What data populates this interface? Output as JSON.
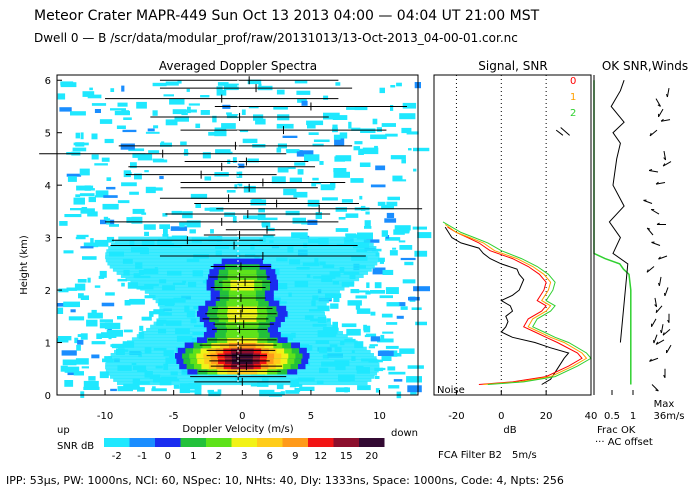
{
  "header": {
    "line1": "Meteor Crater   MAPR-449   Sun Oct 13 2013 04:00 — 04:04 UT 21:00 MST",
    "line2": "Dwell  0 —  B    /scr/data/modular_prof/raw/20131013/13-Oct-2013_04-00-01.cor.nc"
  },
  "footer": {
    "params": "IPP: 53μs,  PW: 1000ns,  NCI: 60,  NSpec: 10,  NHts: 40,  Dly: 1333ns,  Space: 1000ns,  Code: 4,  Npts: 256"
  },
  "chart_data": [
    {
      "id": "doppler",
      "type": "heatmap",
      "title": "Averaged Doppler Spectra",
      "xlabel": "Doppler Velocity (m/s)",
      "ylabel": "Height (km)",
      "x_left_note": "up",
      "x_right_note": "down",
      "xlim": [
        -13.5,
        12.8
      ],
      "ylim": [
        0,
        6.1
      ],
      "xticks": [
        -10,
        -5,
        0,
        5,
        10
      ],
      "yticks": [
        0,
        1,
        2,
        3,
        4,
        5,
        6
      ],
      "snr_profile": [
        {
          "h": 0.45,
          "half_width": 4.0,
          "level": 5
        },
        {
          "h": 0.55,
          "half_width": 4.6,
          "level": 8
        },
        {
          "h": 0.65,
          "half_width": 4.8,
          "level": 9
        },
        {
          "h": 0.75,
          "half_width": 4.9,
          "level": 9
        },
        {
          "h": 0.85,
          "half_width": 4.7,
          "level": 8
        },
        {
          "h": 0.95,
          "half_width": 4.2,
          "level": 6
        },
        {
          "h": 1.05,
          "half_width": 3.3,
          "level": 4
        },
        {
          "h": 1.15,
          "half_width": 2.8,
          "level": 3
        },
        {
          "h": 1.25,
          "half_width": 2.6,
          "level": 3
        },
        {
          "h": 1.35,
          "half_width": 2.8,
          "level": 3
        },
        {
          "h": 1.45,
          "half_width": 3.1,
          "level": 4
        },
        {
          "h": 1.55,
          "half_width": 3.3,
          "level": 4
        },
        {
          "h": 1.65,
          "half_width": 3.2,
          "level": 4
        },
        {
          "h": 1.75,
          "half_width": 2.7,
          "level": 3
        },
        {
          "h": 1.85,
          "half_width": 2.3,
          "level": 3
        },
        {
          "h": 1.95,
          "half_width": 2.3,
          "level": 3
        },
        {
          "h": 2.05,
          "half_width": 2.6,
          "level": 4
        },
        {
          "h": 2.15,
          "half_width": 2.6,
          "level": 4
        },
        {
          "h": 2.25,
          "half_width": 2.5,
          "level": 3
        },
        {
          "h": 2.35,
          "half_width": 2.4,
          "level": 3
        },
        {
          "h": 2.45,
          "half_width": 2.1,
          "level": 2
        },
        {
          "h": 2.55,
          "half_width": 1.5,
          "level": 1
        }
      ],
      "vertical_velocity_markers": [
        {
          "h": 0.25,
          "v": 0.0,
          "err": 3.5
        },
        {
          "h": 0.35,
          "v": -0.3,
          "err": 3.5
        },
        {
          "h": 0.45,
          "v": -0.2,
          "err": 3.0
        },
        {
          "h": 0.55,
          "v": 0.3,
          "err": 2.6
        },
        {
          "h": 0.65,
          "v": -0.2,
          "err": 2.2
        },
        {
          "h": 0.75,
          "v": -0.4,
          "err": 2.2
        },
        {
          "h": 0.85,
          "v": -0.1,
          "err": 2.5
        },
        {
          "h": 0.95,
          "v": -0.3,
          "err": 2.8
        },
        {
          "h": 1.05,
          "v": 0.0,
          "err": 2.5
        },
        {
          "h": 1.25,
          "v": -0.2,
          "err": 2.0
        },
        {
          "h": 1.35,
          "v": 0.1,
          "err": 2.2
        },
        {
          "h": 1.45,
          "v": -0.5,
          "err": 2.4
        },
        {
          "h": 1.55,
          "v": -0.1,
          "err": 2.6
        },
        {
          "h": 1.65,
          "v": 0.0,
          "err": 2.2
        },
        {
          "h": 1.85,
          "v": -0.1,
          "err": 1.8
        },
        {
          "h": 2.05,
          "v": -0.3,
          "err": 2.0
        },
        {
          "h": 2.15,
          "v": 0.2,
          "err": 1.9
        },
        {
          "h": 2.25,
          "v": -0.2,
          "err": 2.2
        },
        {
          "h": 2.45,
          "v": -0.1,
          "err": 2.2
        },
        {
          "h": 2.65,
          "v": 1.5,
          "err": 7.5
        },
        {
          "h": 2.85,
          "v": -0.6,
          "err": 9.0
        },
        {
          "h": 2.95,
          "v": -4.0,
          "err": 5.5
        },
        {
          "h": 3.05,
          "v": -0.2,
          "err": 2.6
        },
        {
          "h": 3.15,
          "v": 1.8,
          "err": 3.0
        },
        {
          "h": 3.3,
          "v": -1.5,
          "err": 8.5
        },
        {
          "h": 3.45,
          "v": 0.4,
          "err": 6.0
        },
        {
          "h": 3.55,
          "v": 5.6,
          "err": 7.5
        },
        {
          "h": 3.65,
          "v": 2.5,
          "err": 6.0
        },
        {
          "h": 3.75,
          "v": -1.0,
          "err": 5.0
        },
        {
          "h": 3.95,
          "v": 0.5,
          "err": 5.0
        },
        {
          "h": 4.05,
          "v": 1.5,
          "err": 6.0
        },
        {
          "h": 4.2,
          "v": -3.0,
          "err": 5.5
        },
        {
          "h": 4.35,
          "v": -1.5,
          "err": 6.8
        },
        {
          "h": 4.45,
          "v": 0.3,
          "err": 4.5
        },
        {
          "h": 4.6,
          "v": -5.8,
          "err": 9.0
        },
        {
          "h": 4.75,
          "v": -0.5,
          "err": 8.5
        },
        {
          "h": 5.05,
          "v": 3.0,
          "err": 7.5
        },
        {
          "h": 5.3,
          "v": -0.2,
          "err": 6.5
        },
        {
          "h": 5.5,
          "v": 5.0,
          "err": 7.0
        },
        {
          "h": 5.65,
          "v": -1.5,
          "err": 8.5
        },
        {
          "h": 5.85,
          "v": 1.0,
          "err": 7.0
        },
        {
          "h": 6.0,
          "v": 0.5,
          "err": 6.5
        }
      ],
      "colorbar": {
        "label": "SNR dB",
        "levels": [
          "-2",
          "-1",
          "0",
          "1",
          "2",
          "3",
          "6",
          "9",
          "12",
          "15",
          "20"
        ],
        "colors": [
          "#1fe8ff",
          "#1a8dff",
          "#1a2df0",
          "#22c13a",
          "#5ee21a",
          "#f2f217",
          "#ffcc1a",
          "#ff9a1a",
          "#f21414",
          "#8c0f2d",
          "#330a33"
        ]
      }
    },
    {
      "id": "signal",
      "type": "line",
      "title": "Signal, SNR",
      "xlabel": "dB",
      "xlim": [
        -30,
        40
      ],
      "xticks": [
        -20,
        0,
        20,
        40
      ],
      "ylim": [
        0,
        6.1
      ],
      "noise_label": "Noise",
      "series": [
        {
          "name": "signal",
          "color": "#000000",
          "points": [
            [
              18,
              0.2
            ],
            [
              22,
              0.3
            ],
            [
              25,
              0.5
            ],
            [
              28,
              0.7
            ],
            [
              30,
              0.8
            ],
            [
              22,
              0.9
            ],
            [
              15,
              1.0
            ],
            [
              5,
              1.1
            ],
            [
              0,
              1.2
            ],
            [
              2,
              1.3
            ],
            [
              3,
              1.4
            ],
            [
              2,
              1.5
            ],
            [
              5,
              1.6
            ],
            [
              4,
              1.7
            ],
            [
              0,
              1.8
            ],
            [
              5,
              1.9
            ],
            [
              8,
              2.0
            ],
            [
              10,
              2.2
            ],
            [
              8,
              2.3
            ],
            [
              7,
              2.4
            ],
            [
              0,
              2.5
            ],
            [
              -5,
              2.6
            ],
            [
              -8,
              2.7
            ],
            [
              -10,
              2.8
            ],
            [
              -18,
              2.9
            ],
            [
              -22,
              3.0
            ],
            [
              -25,
              3.2
            ]
          ]
        },
        {
          "name": "snr_0",
          "color": "#ff0000",
          "points": [
            [
              -10,
              0.2
            ],
            [
              5,
              0.25
            ],
            [
              20,
              0.35
            ],
            [
              30,
              0.55
            ],
            [
              36,
              0.7
            ],
            [
              34,
              0.8
            ],
            [
              25,
              1.0
            ],
            [
              20,
              1.1
            ],
            [
              15,
              1.2
            ],
            [
              10,
              1.3
            ],
            [
              12,
              1.45
            ],
            [
              18,
              1.6
            ],
            [
              20,
              1.7
            ],
            [
              16,
              1.8
            ],
            [
              19,
              2.0
            ],
            [
              20,
              2.15
            ],
            [
              17,
              2.3
            ],
            [
              12,
              2.45
            ],
            [
              5,
              2.6
            ],
            [
              -5,
              2.75
            ],
            [
              -10,
              2.9
            ],
            [
              -15,
              3.0
            ],
            [
              -20,
              3.1
            ],
            [
              -24,
              3.2
            ]
          ]
        },
        {
          "name": "snr_1",
          "color": "#ffa000",
          "points": [
            [
              -8,
              0.2
            ],
            [
              8,
              0.25
            ],
            [
              22,
              0.35
            ],
            [
              32,
              0.55
            ],
            [
              38,
              0.7
            ],
            [
              36,
              0.8
            ],
            [
              28,
              1.0
            ],
            [
              22,
              1.1
            ],
            [
              17,
              1.2
            ],
            [
              12,
              1.3
            ],
            [
              14,
              1.45
            ],
            [
              20,
              1.6
            ],
            [
              22,
              1.7
            ],
            [
              18,
              1.8
            ],
            [
              21,
              2.0
            ],
            [
              22,
              2.15
            ],
            [
              19,
              2.3
            ],
            [
              14,
              2.45
            ],
            [
              7,
              2.6
            ],
            [
              -3,
              2.75
            ],
            [
              -8,
              2.9
            ],
            [
              -14,
              3.0
            ],
            [
              -20,
              3.1
            ],
            [
              -25,
              3.25
            ]
          ]
        },
        {
          "name": "snr_2",
          "color": "#30d030",
          "points": [
            [
              -6,
              0.2
            ],
            [
              10,
              0.25
            ],
            [
              24,
              0.35
            ],
            [
              34,
              0.55
            ],
            [
              40,
              0.7
            ],
            [
              38,
              0.8
            ],
            [
              30,
              1.0
            ],
            [
              24,
              1.1
            ],
            [
              19,
              1.2
            ],
            [
              14,
              1.3
            ],
            [
              16,
              1.45
            ],
            [
              22,
              1.6
            ],
            [
              24,
              1.7
            ],
            [
              20,
              1.8
            ],
            [
              23,
              2.0
            ],
            [
              24,
              2.15
            ],
            [
              21,
              2.3
            ],
            [
              16,
              2.45
            ],
            [
              9,
              2.6
            ],
            [
              0,
              2.75
            ],
            [
              -6,
              2.9
            ],
            [
              -12,
              3.0
            ],
            [
              -18,
              3.1
            ],
            [
              -26,
              3.3
            ]
          ]
        }
      ],
      "legend": [
        {
          "label": "0",
          "color": "#ff0000"
        },
        {
          "label": "1",
          "color": "#ffa000"
        },
        {
          "label": "2",
          "color": "#30d030"
        }
      ]
    },
    {
      "id": "winds",
      "type": "line",
      "title": "OK SNR,Winds",
      "xlabel": "Frac OK",
      "xlabel2": "··· AC offset",
      "xticks": [
        "0.5",
        "1"
      ],
      "xlim": [
        0,
        1.25
      ],
      "ylim": [
        0,
        6.1
      ],
      "max_label": "Max",
      "max_value": "36m/s",
      "frac_ok": [
        [
          1,
          0.2
        ],
        [
          1,
          2.0
        ],
        [
          0.95,
          2.3
        ],
        [
          0.8,
          2.4
        ],
        [
          0.7,
          2.5
        ],
        [
          0.3,
          2.6
        ],
        [
          0.0,
          2.7
        ],
        [
          0.0,
          6.0
        ]
      ],
      "ac_offset": [
        [
          0.5,
          1.0
        ],
        [
          0.7,
          2.5
        ],
        [
          0.3,
          2.7
        ],
        [
          0.5,
          3.0
        ],
        [
          0.2,
          3.3
        ],
        [
          0.6,
          3.6
        ],
        [
          0.3,
          4.0
        ],
        [
          0.4,
          4.5
        ],
        [
          0.5,
          4.8
        ],
        [
          0.3,
          5.0
        ],
        [
          0.6,
          5.2
        ],
        [
          0.25,
          5.5
        ],
        [
          0.5,
          5.8
        ],
        [
          0.6,
          6.0
        ]
      ],
      "winds": [
        [
          0.2,
          45
        ],
        [
          0.5,
          90
        ],
        [
          0.7,
          160
        ],
        [
          0.95,
          120
        ],
        [
          1.05,
          150
        ],
        [
          1.15,
          110
        ],
        [
          1.25,
          140
        ],
        [
          1.35,
          100
        ],
        [
          1.45,
          120
        ],
        [
          1.55,
          90
        ],
        [
          1.7,
          130
        ],
        [
          1.85,
          80
        ],
        [
          2.05,
          110
        ],
        [
          2.25,
          100
        ],
        [
          2.45,
          140
        ],
        [
          2.65,
          160
        ],
        [
          2.85,
          200
        ],
        [
          3.05,
          230
        ],
        [
          3.25,
          180
        ],
        [
          3.45,
          210
        ],
        [
          3.65,
          200
        ],
        [
          4.05,
          170
        ],
        [
          4.25,
          190
        ],
        [
          4.45,
          150
        ],
        [
          4.65,
          80
        ],
        [
          5.05,
          140
        ],
        [
          5.25,
          170
        ],
        [
          5.45,
          120
        ],
        [
          5.65,
          60
        ],
        [
          5.85,
          100
        ]
      ]
    }
  ],
  "filter_label": "FCA Filter B2",
  "filter_value": "5m/s"
}
